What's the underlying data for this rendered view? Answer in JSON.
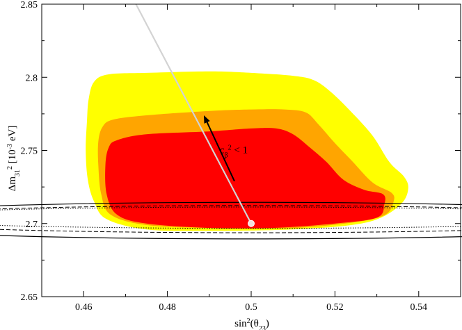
{
  "chart_data": {
    "type": "contour",
    "xlabel_base": "sin",
    "xlabel_sup": "2",
    "xlabel_paren": "(θ",
    "xlabel_sub": "23",
    "xlabel_close": ")",
    "ylabel_base": "Δm",
    "ylabel_sub": "31",
    "ylabel_sup": "2",
    "ylabel_unit_open": " [10",
    "ylabel_unit_sup": "-3",
    "ylabel_unit_close": " eV]",
    "xlim": [
      0.45,
      0.55
    ],
    "ylim": [
      2.65,
      2.85
    ],
    "xticks": [
      0.46,
      0.48,
      0.5,
      0.52,
      0.54
    ],
    "xtick_labels": [
      "0.46",
      "0.48",
      "0.5",
      "0.52",
      "0.54"
    ],
    "yticks": [
      2.65,
      2.7,
      2.75,
      2.8,
      2.85
    ],
    "ytick_labels": [
      "2.65",
      "2.7",
      "2.75",
      "2.8",
      "2.85"
    ],
    "colors": {
      "outer_region": "#ffff00",
      "middle_region": "#ffa500",
      "inner_region": "#ff0000",
      "trajectory": "#d3d3d3",
      "arrow": "#000000"
    },
    "regions": [
      {
        "name": "outer",
        "color": "#ffff00",
        "points": [
          [
            0.4655,
            2.703
          ],
          [
            0.4625,
            2.715
          ],
          [
            0.461,
            2.73
          ],
          [
            0.4605,
            2.75
          ],
          [
            0.4608,
            2.77
          ],
          [
            0.4612,
            2.785
          ],
          [
            0.4625,
            2.797
          ],
          [
            0.466,
            2.802
          ],
          [
            0.475,
            2.803
          ],
          [
            0.49,
            2.804
          ],
          [
            0.5,
            2.803
          ],
          [
            0.51,
            2.801
          ],
          [
            0.515,
            2.798
          ],
          [
            0.519,
            2.79
          ],
          [
            0.524,
            2.776
          ],
          [
            0.529,
            2.76
          ],
          [
            0.533,
            2.742
          ],
          [
            0.5365,
            2.732
          ],
          [
            0.5375,
            2.724
          ],
          [
            0.536,
            2.714
          ],
          [
            0.531,
            2.704
          ],
          [
            0.524,
            2.699
          ],
          [
            0.51,
            2.696
          ],
          [
            0.49,
            2.695
          ],
          [
            0.475,
            2.696
          ],
          [
            0.4655,
            2.703
          ]
        ]
      },
      {
        "name": "middle",
        "color": "#ffa500",
        "points": [
          [
            0.4665,
            2.706
          ],
          [
            0.4642,
            2.72
          ],
          [
            0.4635,
            2.74
          ],
          [
            0.4635,
            2.756
          ],
          [
            0.4645,
            2.766
          ],
          [
            0.467,
            2.771
          ],
          [
            0.475,
            2.774
          ],
          [
            0.49,
            2.777
          ],
          [
            0.5,
            2.778
          ],
          [
            0.508,
            2.778
          ],
          [
            0.513,
            2.776
          ],
          [
            0.516,
            2.768
          ],
          [
            0.52,
            2.755
          ],
          [
            0.524,
            2.743
          ],
          [
            0.529,
            2.728
          ],
          [
            0.5335,
            2.721
          ],
          [
            0.534,
            2.715
          ],
          [
            0.532,
            2.706
          ],
          [
            0.525,
            2.701
          ],
          [
            0.51,
            2.697
          ],
          [
            0.49,
            2.697
          ],
          [
            0.475,
            2.699
          ],
          [
            0.4665,
            2.706
          ]
        ]
      },
      {
        "name": "inner",
        "color": "#ff0000",
        "points": [
          [
            0.468,
            2.706
          ],
          [
            0.4655,
            2.72
          ],
          [
            0.4652,
            2.74
          ],
          [
            0.466,
            2.752
          ],
          [
            0.468,
            2.757
          ],
          [
            0.475,
            2.761
          ],
          [
            0.49,
            2.763
          ],
          [
            0.5,
            2.765
          ],
          [
            0.506,
            2.765
          ],
          [
            0.51,
            2.761
          ],
          [
            0.514,
            2.752
          ],
          [
            0.518,
            2.742
          ],
          [
            0.522,
            2.73
          ],
          [
            0.527,
            2.723
          ],
          [
            0.5315,
            2.72
          ],
          [
            0.5318,
            2.713
          ],
          [
            0.53,
            2.704
          ],
          [
            0.52,
            2.7
          ],
          [
            0.505,
            2.697
          ],
          [
            0.49,
            2.697
          ],
          [
            0.475,
            2.7
          ],
          [
            0.468,
            2.706
          ]
        ]
      }
    ],
    "ellipses": [
      {
        "name": "solid",
        "center": [
          0.5,
          2.702
        ],
        "rx": 0.1033,
        "ry": 0.0125,
        "style": "solid"
      },
      {
        "name": "dashed",
        "center": [
          0.5,
          2.703
        ],
        "rx": 0.0918,
        "ry": 0.0093,
        "style": "dashed"
      },
      {
        "name": "dotted",
        "center": [
          0.5,
          2.704
        ],
        "rx": 0.0877,
        "ry": 0.0073,
        "style": "dotted"
      }
    ],
    "trajectory": {
      "from": [
        0.4725,
        2.85
      ],
      "to": [
        0.5,
        2.7
      ]
    },
    "arrow": {
      "from": [
        0.496,
        2.729
      ],
      "to": [
        0.4887,
        2.774
      ]
    },
    "annotation": {
      "base": "c",
      "sub": "β",
      "sup": "2",
      "rest": " < 1",
      "x": 0.4925,
      "y": 2.748
    }
  }
}
